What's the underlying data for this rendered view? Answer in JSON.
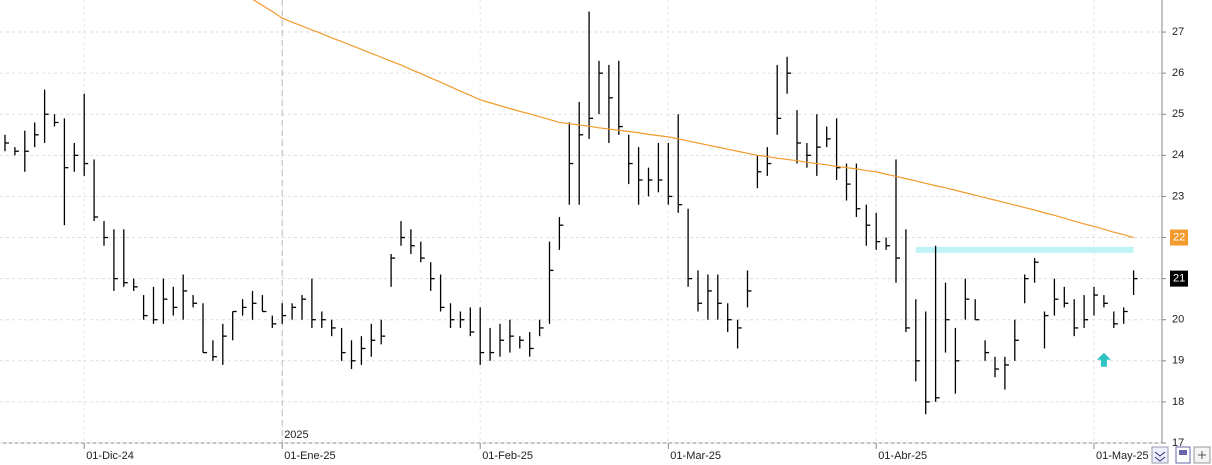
{
  "chart_data": {
    "type": "ohlc",
    "categories": [
      null,
      null,
      null,
      null,
      null,
      null,
      null,
      null,
      "01-Dic-24",
      null,
      null,
      null,
      null,
      null,
      null,
      null,
      null,
      null,
      null,
      null,
      null,
      null,
      null,
      null,
      null,
      null,
      null,
      null,
      "01-Ene-25",
      null,
      null,
      null,
      null,
      null,
      null,
      null,
      null,
      null,
      null,
      null,
      null,
      null,
      null,
      null,
      null,
      null,
      null,
      null,
      "01-Feb-25",
      null,
      null,
      null,
      null,
      null,
      null,
      null,
      null,
      null,
      null,
      null,
      null,
      null,
      null,
      null,
      null,
      null,
      null,
      "01-Mar-25",
      null,
      null,
      null,
      null,
      null,
      null,
      null,
      null,
      null,
      null,
      null,
      null,
      null,
      null,
      null,
      null,
      null,
      null,
      null,
      null,
      "01-Abr-25",
      null,
      null,
      null,
      null,
      null,
      null,
      null,
      null,
      null,
      null,
      null,
      null,
      null,
      null,
      null,
      null,
      null,
      null,
      null,
      null,
      null,
      "01-May-25",
      null,
      null,
      null,
      null,
      null
    ],
    "ohlc": {
      "color": "#000000",
      "high": [
        24.5,
        24.2,
        24.6,
        24.8,
        25.6,
        25.0,
        24.9,
        24.3,
        25.5,
        23.9,
        22.4,
        22.2,
        22.2,
        21.0,
        20.6,
        20.8,
        21.0,
        20.8,
        21.1,
        20.6,
        20.4,
        19.5,
        19.9,
        20.2,
        20.5,
        20.7,
        20.6,
        20.1,
        20.4,
        20.4,
        20.6,
        21.0,
        20.2,
        20.0,
        19.8,
        19.5,
        19.6,
        19.9,
        20.0,
        21.6,
        22.4,
        22.2,
        21.9,
        21.4,
        21.1,
        20.4,
        20.2,
        20.3,
        20.3,
        19.8,
        19.9,
        20.0,
        19.6,
        19.7,
        20.0,
        21.9,
        22.5,
        24.8,
        25.3,
        27.5,
        26.3,
        26.2,
        26.3,
        24.5,
        24.2,
        23.7,
        24.3,
        24.3,
        25.0,
        22.7,
        21.2,
        21.1,
        21.1,
        20.4,
        20.0,
        21.2,
        24.0,
        24.2,
        26.2,
        26.4,
        25.1,
        24.3,
        25.0,
        24.7,
        24.9,
        23.8,
        23.8,
        22.8,
        22.6,
        22.0,
        23.9,
        22.2,
        20.5,
        20.2,
        21.8,
        20.9,
        19.8,
        21.0,
        20.5,
        19.5,
        19.1,
        19.1,
        20.0,
        21.1,
        21.5,
        20.2,
        21.0,
        20.8,
        20.5,
        20.6,
        20.8,
        20.6,
        20.2,
        20.3,
        21.2
      ],
      "low": [
        24.1,
        24.0,
        23.6,
        24.2,
        24.3,
        24.7,
        22.3,
        23.6,
        23.5,
        22.4,
        21.8,
        20.7,
        20.8,
        20.7,
        20.0,
        19.9,
        19.9,
        20.1,
        20.0,
        20.3,
        19.2,
        19.0,
        18.9,
        19.5,
        20.1,
        20.0,
        20.2,
        19.8,
        19.9,
        20.0,
        20.0,
        19.8,
        19.8,
        19.6,
        19.0,
        18.8,
        18.9,
        19.1,
        19.4,
        20.8,
        21.8,
        21.6,
        21.4,
        20.7,
        20.2,
        19.8,
        19.8,
        19.6,
        18.9,
        19.0,
        19.1,
        19.2,
        19.3,
        19.1,
        19.6,
        19.9,
        21.7,
        22.8,
        22.8,
        24.4,
        25.0,
        24.3,
        24.5,
        23.3,
        22.8,
        23.0,
        23.1,
        22.8,
        22.6,
        20.8,
        20.2,
        20.0,
        20.0,
        19.7,
        19.3,
        20.3,
        23.2,
        23.5,
        24.5,
        25.5,
        23.8,
        23.7,
        23.5,
        24.2,
        23.4,
        22.9,
        22.5,
        21.8,
        21.7,
        21.7,
        20.9,
        19.7,
        18.5,
        17.7,
        18.0,
        19.2,
        18.2,
        20.0,
        20.0,
        19.0,
        18.6,
        18.3,
        19.0,
        20.4,
        20.9,
        19.3,
        20.1,
        20.3,
        19.6,
        19.8,
        20.1,
        20.3,
        19.8,
        19.9,
        20.6
      ],
      "close": [
        24.3,
        24.1,
        24.1,
        24.5,
        25.0,
        24.8,
        23.7,
        24.0,
        23.8,
        22.5,
        22.0,
        21.0,
        20.9,
        20.8,
        20.1,
        20.0,
        20.5,
        20.3,
        20.7,
        20.4,
        19.2,
        19.1,
        19.6,
        20.2,
        20.3,
        20.4,
        20.2,
        19.9,
        20.1,
        20.3,
        20.5,
        20.0,
        20.0,
        19.8,
        19.2,
        19.0,
        19.3,
        19.5,
        19.6,
        21.5,
        22.0,
        21.8,
        21.5,
        21.0,
        20.3,
        20.0,
        20.0,
        19.7,
        19.2,
        19.2,
        19.5,
        19.6,
        19.5,
        19.3,
        19.8,
        21.2,
        22.3,
        23.8,
        24.5,
        24.9,
        26.0,
        25.4,
        24.7,
        23.8,
        23.4,
        23.4,
        23.4,
        23.0,
        22.8,
        21.0,
        20.4,
        20.7,
        20.4,
        20.0,
        19.8,
        20.7,
        23.6,
        23.8,
        24.9,
        26.0,
        24.3,
        24.0,
        24.2,
        24.4,
        23.7,
        23.3,
        22.7,
        22.3,
        21.9,
        21.8,
        21.5,
        19.8,
        19.0,
        18.0,
        18.1,
        20.0,
        19.0,
        20.5,
        20.0,
        19.2,
        18.8,
        18.9,
        19.5,
        21.0,
        21.4,
        20.1,
        20.5,
        20.4,
        19.8,
        20.0,
        20.6,
        20.4,
        19.9,
        20.2,
        21.0
      ]
    },
    "ma": {
      "color": "#f39a2d",
      "values": [
        null,
        null,
        null,
        null,
        null,
        null,
        null,
        null,
        null,
        null,
        null,
        null,
        null,
        null,
        null,
        null,
        null,
        null,
        null,
        null,
        null,
        null,
        null,
        null,
        null,
        27.8,
        27.65,
        27.5,
        27.34,
        27.24,
        27.15,
        27.05,
        26.96,
        26.86,
        26.77,
        26.67,
        26.58,
        26.48,
        26.39,
        26.29,
        26.2,
        26.09,
        25.99,
        25.88,
        25.78,
        25.67,
        25.56,
        25.46,
        25.35,
        25.28,
        25.21,
        25.14,
        25.07,
        25.01,
        24.94,
        24.87,
        24.8,
        24.77,
        24.74,
        24.71,
        24.67,
        24.64,
        24.61,
        24.58,
        24.55,
        24.51,
        24.48,
        24.45,
        24.4,
        24.35,
        24.3,
        24.25,
        24.2,
        24.15,
        24.1,
        24.05,
        24.0,
        23.97,
        23.93,
        23.9,
        23.87,
        23.83,
        23.8,
        23.77,
        23.73,
        23.7,
        23.67,
        23.63,
        23.6,
        23.54,
        23.49,
        23.43,
        23.38,
        23.32,
        23.26,
        23.21,
        23.15,
        23.09,
        23.03,
        22.97,
        22.91,
        22.85,
        22.79,
        22.73,
        22.67,
        22.6,
        22.54,
        22.47,
        22.4,
        22.33,
        22.27,
        22.2,
        22.13,
        22.07,
        22.0
      ]
    },
    "last_labels": [
      {
        "value": 22,
        "color": "#f39a2d"
      },
      {
        "value": 21,
        "color": "#000000"
      }
    ],
    "band": {
      "value": 21.7,
      "start": 92,
      "end": 114,
      "color": "#bff3f5"
    },
    "arrow": {
      "value": 19.0,
      "index": 111,
      "color": "#2ec4c4"
    },
    "year_marker": {
      "label": "2025",
      "index": 28
    },
    "ylim": [
      17,
      27.78
    ],
    "yticks": [
      17,
      18,
      19,
      20,
      21,
      22,
      23,
      24,
      25,
      26,
      27
    ],
    "grid": true
  }
}
